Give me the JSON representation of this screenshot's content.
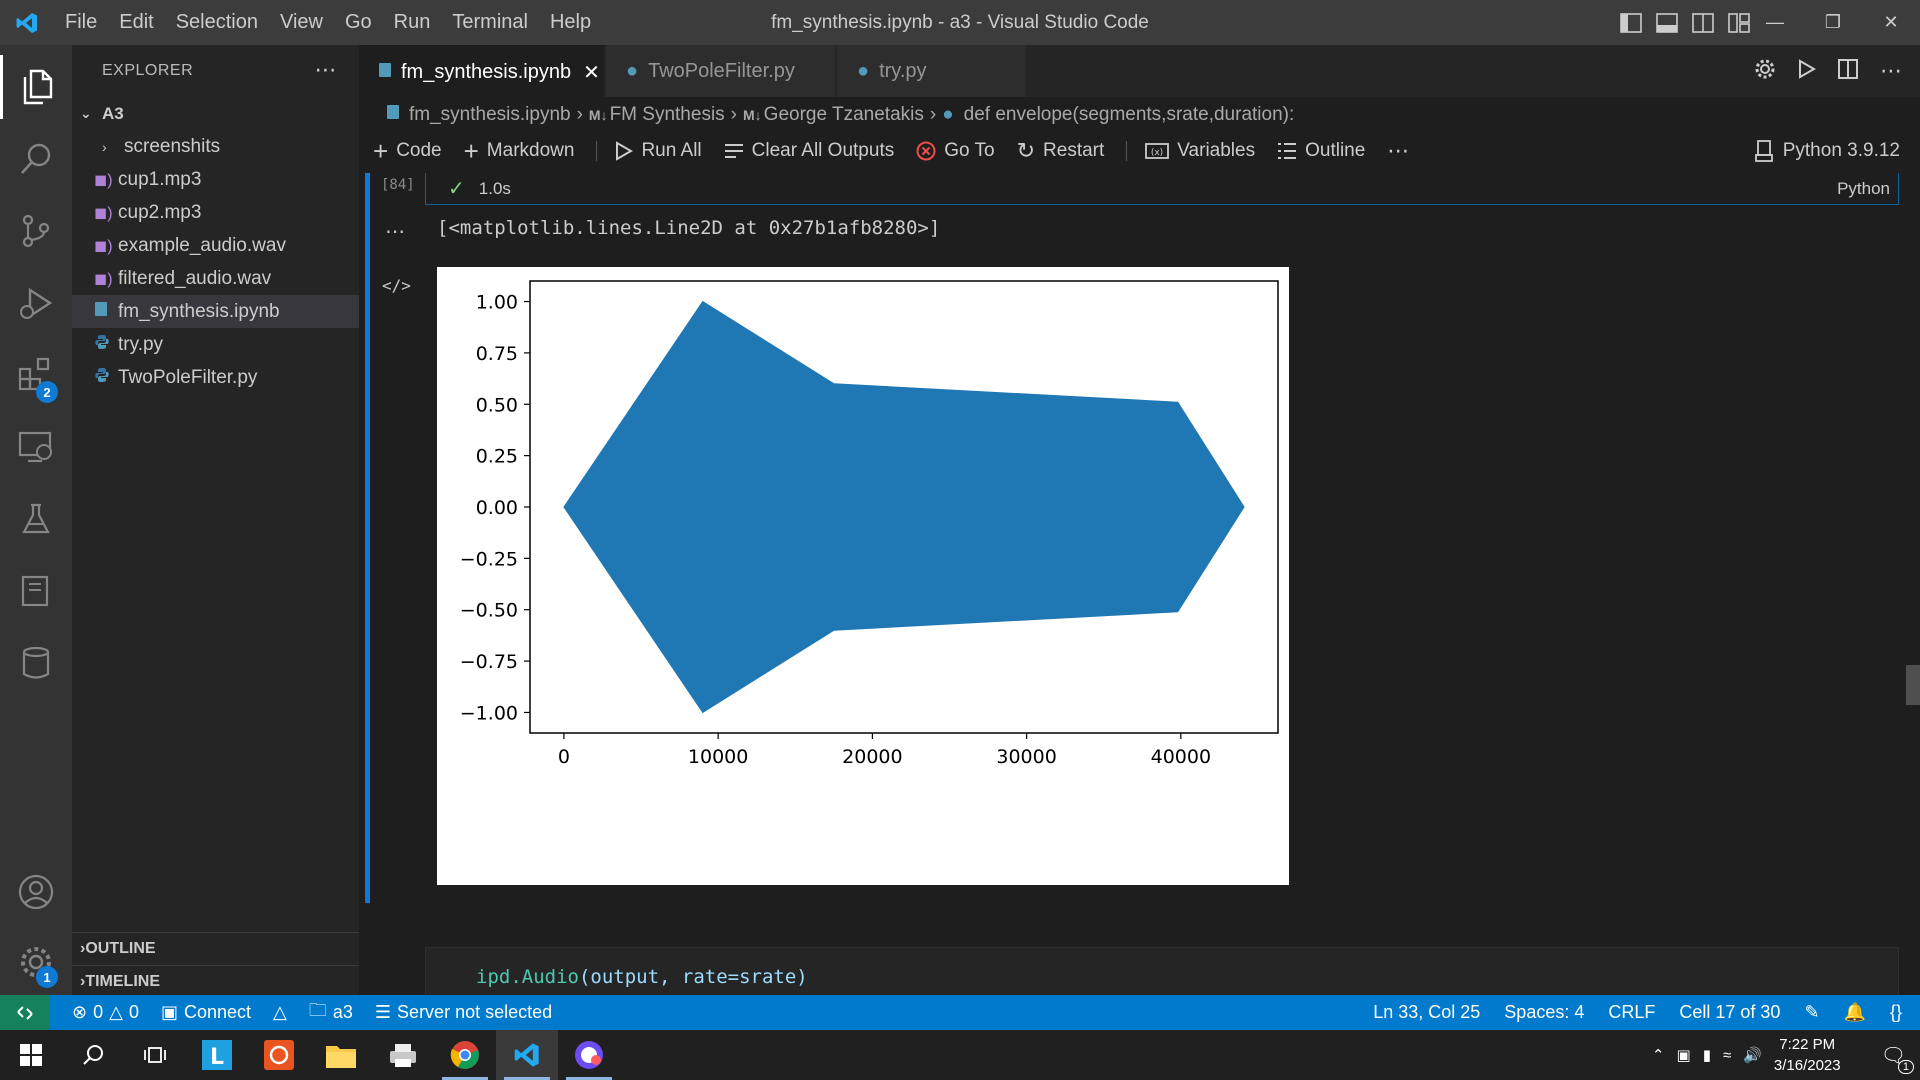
{
  "titlebar": {
    "menu": [
      "File",
      "Edit",
      "Selection",
      "View",
      "Go",
      "Run",
      "Terminal",
      "Help"
    ],
    "title": "fm_synthesis.ipynb - a3 - Visual Studio Code"
  },
  "activity_bar": {
    "extensions_badge": "2",
    "settings_badge": "1"
  },
  "explorer": {
    "header": "EXPLORER",
    "folder": "A3",
    "items": [
      {
        "label": "screenshits",
        "kind": "folder"
      },
      {
        "label": "cup1.mp3",
        "kind": "audio"
      },
      {
        "label": "cup2.mp3",
        "kind": "audio"
      },
      {
        "label": "example_audio.wav",
        "kind": "audio"
      },
      {
        "label": "filtered_audio.wav",
        "kind": "audio"
      },
      {
        "label": "fm_synthesis.ipynb",
        "kind": "notebook",
        "selected": true
      },
      {
        "label": "try.py",
        "kind": "python"
      },
      {
        "label": "TwoPoleFilter.py",
        "kind": "python"
      }
    ],
    "outline": "OUTLINE",
    "timeline": "TIMELINE"
  },
  "tabs": [
    {
      "label": "fm_synthesis.ipynb",
      "active": true
    },
    {
      "label": "TwoPoleFilter.py",
      "active": false
    },
    {
      "label": "try.py",
      "active": false
    }
  ],
  "breadcrumb": [
    "fm_synthesis.ipynb",
    "FM Synthesis",
    "George Tzanetakis",
    "def envelope(segments,srate,duration):"
  ],
  "toolbar": {
    "code": "Code",
    "markdown": "Markdown",
    "run_all": "Run All",
    "clear_outputs": "Clear All Outputs",
    "go_to": "Go To",
    "restart": "Restart",
    "variables": "Variables",
    "outline": "Outline",
    "kernel": "Python 3.9.12"
  },
  "cell": {
    "exec_count": "[84]",
    "duration": "1.0s",
    "language": "Python",
    "output_text": "[<matplotlib.lines.Line2D at 0x27b1afb8280>]",
    "next_code": {
      "fn": "ipd.Audio",
      "args": "(output, rate=srate)"
    }
  },
  "chart_data": {
    "type": "area",
    "description": "Envelope of an FM synthesized signal (filled waveform, symmetric about 0)",
    "x": [
      0,
      9000,
      17500,
      39800,
      44100
    ],
    "y_upper": [
      0,
      1.0,
      0.6,
      0.51,
      0
    ],
    "y_lower": [
      0,
      -1.0,
      -0.6,
      -0.51,
      0
    ],
    "xlim": [
      -2200,
      46300
    ],
    "ylim": [
      -1.1,
      1.1
    ],
    "xticks": [
      0,
      10000,
      20000,
      30000,
      40000
    ],
    "yticks": [
      1.0,
      0.75,
      0.5,
      0.25,
      0.0,
      -0.25,
      -0.5,
      -0.75,
      -1.0
    ],
    "xtick_labels": [
      "0",
      "10000",
      "20000",
      "30000",
      "40000"
    ],
    "ytick_labels": [
      "1.00",
      "0.75",
      "0.50",
      "0.25",
      "0.00",
      "−0.25",
      "−0.50",
      "−0.75",
      "−1.00"
    ],
    "color": "#1f77b4",
    "title": "",
    "xlabel": "",
    "ylabel": ""
  },
  "statusbar": {
    "errors": "0",
    "warnings": "0",
    "connect": "Connect",
    "folder": "a3",
    "server": "Server not selected",
    "position": "Ln 33, Col 25",
    "spaces": "Spaces: 4",
    "eol": "CRLF",
    "cell": "Cell 17 of 30"
  },
  "taskbar": {
    "time": "7:22 PM",
    "date": "3/16/2023",
    "notifications": "1"
  },
  "colors": {
    "accent": "#007acc",
    "remote": "#16825d",
    "plot_fill": "#1f77b4"
  }
}
